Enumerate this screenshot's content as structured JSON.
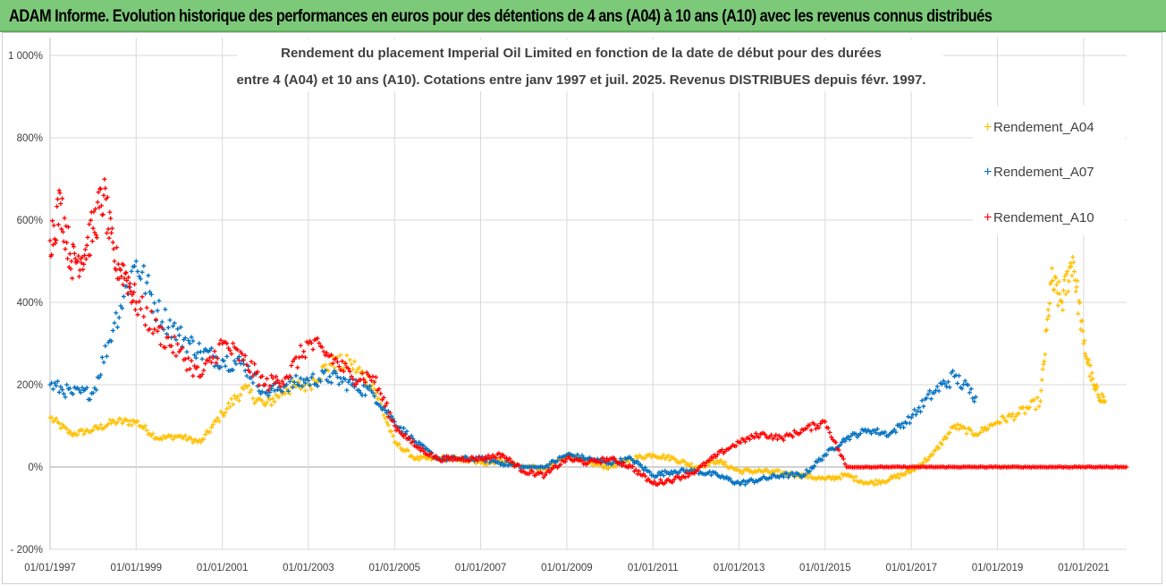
{
  "header": {
    "title": "ADAM Informe. Evolution historique des performances en euros pour des détentions de 4 ans (A04) à 10 ans (A10) avec les revenus connus distribués"
  },
  "colors": {
    "banner": "#7dc97a",
    "A04": "#ffc000",
    "A07": "#0070c0",
    "A10": "#ff0000",
    "grid": "#d9d9d9",
    "zero_line": "#a6a6a6"
  },
  "chart_data": {
    "type": "scatter",
    "title_line1": "Rendement du placement Imperial Oil Limited en fonction de la date de début pour des durées",
    "title_line2": "entre 4 (A04) et 10 ans (A10).  Cotations entre janv 1997 et juil. 2025. Revenus DISTRIBUES depuis févr. 1997.",
    "x_scale": "date",
    "xlim": [
      "1997-01-01",
      "2022-01-01"
    ],
    "x_ticks": [
      "01/01/1997",
      "01/01/1999",
      "01/01/2001",
      "01/01/2003",
      "01/01/2005",
      "01/01/2007",
      "01/01/2009",
      "01/01/2011",
      "01/01/2013",
      "01/01/2015",
      "01/01/2017",
      "01/01/2019",
      "01/01/2021"
    ],
    "y_unit": "%",
    "ylim": [
      -200,
      1000
    ],
    "y_ticks": [
      "1 000%",
      "800%",
      "600%",
      "400%",
      "200%",
      "0%",
      "- 200%"
    ],
    "grid": true,
    "legend_position": "right",
    "series": [
      {
        "name": "Rendement_A04",
        "color": "#ffc000",
        "x": [
          "1997-01-01",
          "1997-07-01",
          "1998-01-01",
          "1998-07-01",
          "1999-01-01",
          "1999-07-01",
          "2000-01-01",
          "2000-07-01",
          "2001-01-01",
          "2001-07-01",
          "2002-01-01",
          "2002-07-01",
          "2003-01-01",
          "2003-07-01",
          "2004-01-01",
          "2004-07-01",
          "2005-01-01",
          "2005-07-01",
          "2006-01-01",
          "2006-07-01",
          "2007-01-01",
          "2007-07-01",
          "2008-01-01",
          "2008-07-01",
          "2009-01-01",
          "2009-07-01",
          "2010-01-01",
          "2010-07-01",
          "2011-01-01",
          "2011-07-01",
          "2012-01-01",
          "2012-07-01",
          "2013-01-01",
          "2013-07-01",
          "2014-01-01",
          "2014-07-01",
          "2015-01-01",
          "2015-07-01",
          "2016-01-01",
          "2016-07-01",
          "2017-01-01",
          "2017-07-01",
          "2018-01-01",
          "2018-07-01",
          "2019-01-01",
          "2019-07-01",
          "2020-01-01",
          "2020-04-01",
          "2020-07-01",
          "2020-10-01",
          "2021-01-01",
          "2021-04-01",
          "2021-07-01"
        ],
        "y": [
          120,
          80,
          90,
          110,
          110,
          70,
          75,
          60,
          130,
          190,
          150,
          190,
          200,
          250,
          250,
          200,
          60,
          20,
          20,
          20,
          10,
          15,
          0,
          -5,
          30,
          10,
          0,
          20,
          30,
          20,
          0,
          15,
          -10,
          -10,
          -15,
          -20,
          -30,
          -20,
          -40,
          -30,
          -10,
          30,
          100,
          80,
          110,
          130,
          160,
          450,
          400,
          510,
          300,
          190,
          160
        ]
      },
      {
        "name": "Rendement_A07",
        "color": "#0070c0",
        "x": [
          "1997-01-01",
          "1997-07-01",
          "1998-01-01",
          "1998-07-01",
          "1999-01-01",
          "1999-07-01",
          "2000-01-01",
          "2000-07-01",
          "2001-01-01",
          "2001-07-01",
          "2002-01-01",
          "2002-07-01",
          "2003-01-01",
          "2003-07-01",
          "2004-01-01",
          "2004-07-01",
          "2005-01-01",
          "2005-07-01",
          "2006-01-01",
          "2006-07-01",
          "2007-01-01",
          "2007-07-01",
          "2008-01-01",
          "2008-07-01",
          "2009-01-01",
          "2009-07-01",
          "2010-01-01",
          "2010-07-01",
          "2011-01-01",
          "2011-07-01",
          "2012-01-01",
          "2012-07-01",
          "2013-01-01",
          "2013-07-01",
          "2014-01-01",
          "2014-07-01",
          "2015-01-01",
          "2015-07-01",
          "2016-01-01",
          "2016-07-01",
          "2017-01-01",
          "2017-07-01",
          "2018-01-01",
          "2018-07-01"
        ],
        "y": [
          200,
          180,
          180,
          350,
          500,
          380,
          320,
          280,
          260,
          250,
          180,
          200,
          210,
          220,
          200,
          180,
          110,
          60,
          20,
          20,
          20,
          10,
          0,
          0,
          30,
          20,
          10,
          20,
          -20,
          -10,
          -10,
          -20,
          -40,
          -30,
          -20,
          -20,
          30,
          70,
          90,
          80,
          120,
          180,
          220,
          170
        ]
      },
      {
        "name": "Rendement_A10",
        "color": "#ff0000",
        "x": [
          "1997-01-01",
          "1997-04-01",
          "1997-07-01",
          "1997-10-01",
          "1998-01-01",
          "1998-04-01",
          "1998-07-01",
          "1998-10-01",
          "1999-01-01",
          "1999-07-01",
          "2000-01-01",
          "2000-07-01",
          "2001-01-01",
          "2001-07-01",
          "2002-01-01",
          "2002-07-01",
          "2003-01-01",
          "2003-07-01",
          "2004-01-01",
          "2004-07-01",
          "2005-01-01",
          "2005-07-01",
          "2006-01-01",
          "2006-07-01",
          "2007-01-01",
          "2007-07-01",
          "2008-01-01",
          "2008-07-01",
          "2009-01-01",
          "2009-07-01",
          "2010-01-01",
          "2010-07-01",
          "2011-01-01",
          "2011-07-01",
          "2012-01-01",
          "2012-07-01",
          "2013-01-01",
          "2013-07-01",
          "2014-01-01",
          "2014-07-01",
          "2015-01-01",
          "2015-07-01",
          "2016-01-01",
          "2016-07-01",
          "2017-01-01",
          "2017-07-01",
          "2018-01-01",
          "2018-07-01",
          "2019-01-01",
          "2019-07-01",
          "2020-01-01",
          "2020-07-01",
          "2021-01-01",
          "2021-07-01",
          "2021-12-31"
        ],
        "y": [
          550,
          640,
          500,
          510,
          580,
          660,
          500,
          470,
          400,
          330,
          280,
          220,
          300,
          260,
          200,
          220,
          300,
          270,
          220,
          220,
          100,
          50,
          20,
          20,
          20,
          30,
          -10,
          -20,
          20,
          10,
          20,
          0,
          -40,
          -30,
          -10,
          30,
          60,
          80,
          70,
          90,
          110,
          0,
          0,
          0,
          0,
          0,
          0,
          0,
          0,
          0,
          0,
          0,
          0,
          0,
          0
        ]
      }
    ]
  }
}
